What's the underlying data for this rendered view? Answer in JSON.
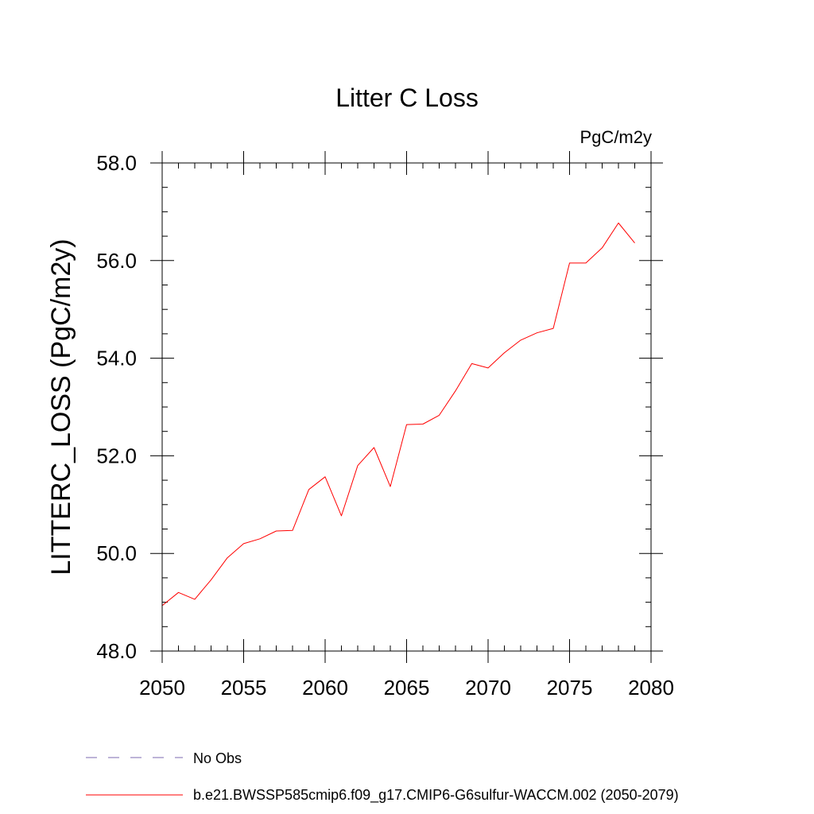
{
  "chart_data": {
    "type": "line",
    "title": "Litter C Loss",
    "units": "PgC/m2y",
    "ylabel": "LITTERC_LOSS  (PgC/m2y)",
    "xlabel": "",
    "xlim": [
      2050,
      2080
    ],
    "ylim": [
      48.0,
      58.0
    ],
    "x_major_ticks": [
      2050,
      2055,
      2060,
      2065,
      2070,
      2075,
      2080
    ],
    "x_tick_labels": [
      "2050",
      "2055",
      "2060",
      "2065",
      "2070",
      "2075",
      "2080"
    ],
    "x_minor_step": 1,
    "y_major_ticks": [
      48.0,
      50.0,
      52.0,
      54.0,
      56.0,
      58.0
    ],
    "y_tick_labels": [
      "48.0",
      "50.0",
      "52.0",
      "54.0",
      "56.0",
      "58.0"
    ],
    "y_minor_step": 0.5,
    "grid": false,
    "legend_position": "bottom-left",
    "series": [
      {
        "name": "b.e21.BWSSP585cmip6.f09_g17.CMIP6-G6sulfur-WACCM.002 (2050-2079)",
        "color": "#ff0000",
        "style": "solid",
        "x": [
          2050,
          2051,
          2052,
          2053,
          2054,
          2055,
          2056,
          2057,
          2058,
          2059,
          2060,
          2061,
          2062,
          2063,
          2064,
          2065,
          2066,
          2067,
          2068,
          2069,
          2070,
          2071,
          2072,
          2073,
          2074,
          2075,
          2076,
          2077,
          2078,
          2079
        ],
        "y": [
          48.93,
          49.2,
          49.06,
          49.46,
          49.91,
          50.2,
          50.3,
          50.46,
          50.47,
          51.31,
          51.57,
          50.77,
          51.8,
          52.17,
          51.37,
          52.64,
          52.65,
          52.83,
          53.33,
          53.89,
          53.8,
          54.11,
          54.37,
          54.52,
          54.61,
          55.95,
          55.95,
          56.26,
          56.77,
          56.36
        ]
      }
    ],
    "legend": [
      {
        "label": "No Obs",
        "color": "#7b68b0",
        "style": "dashed"
      },
      {
        "label": "b.e21.BWSSP585cmip6.f09_g17.CMIP6-G6sulfur-WACCM.002 (2050-2079)",
        "color": "#ff0000",
        "style": "solid"
      }
    ]
  }
}
